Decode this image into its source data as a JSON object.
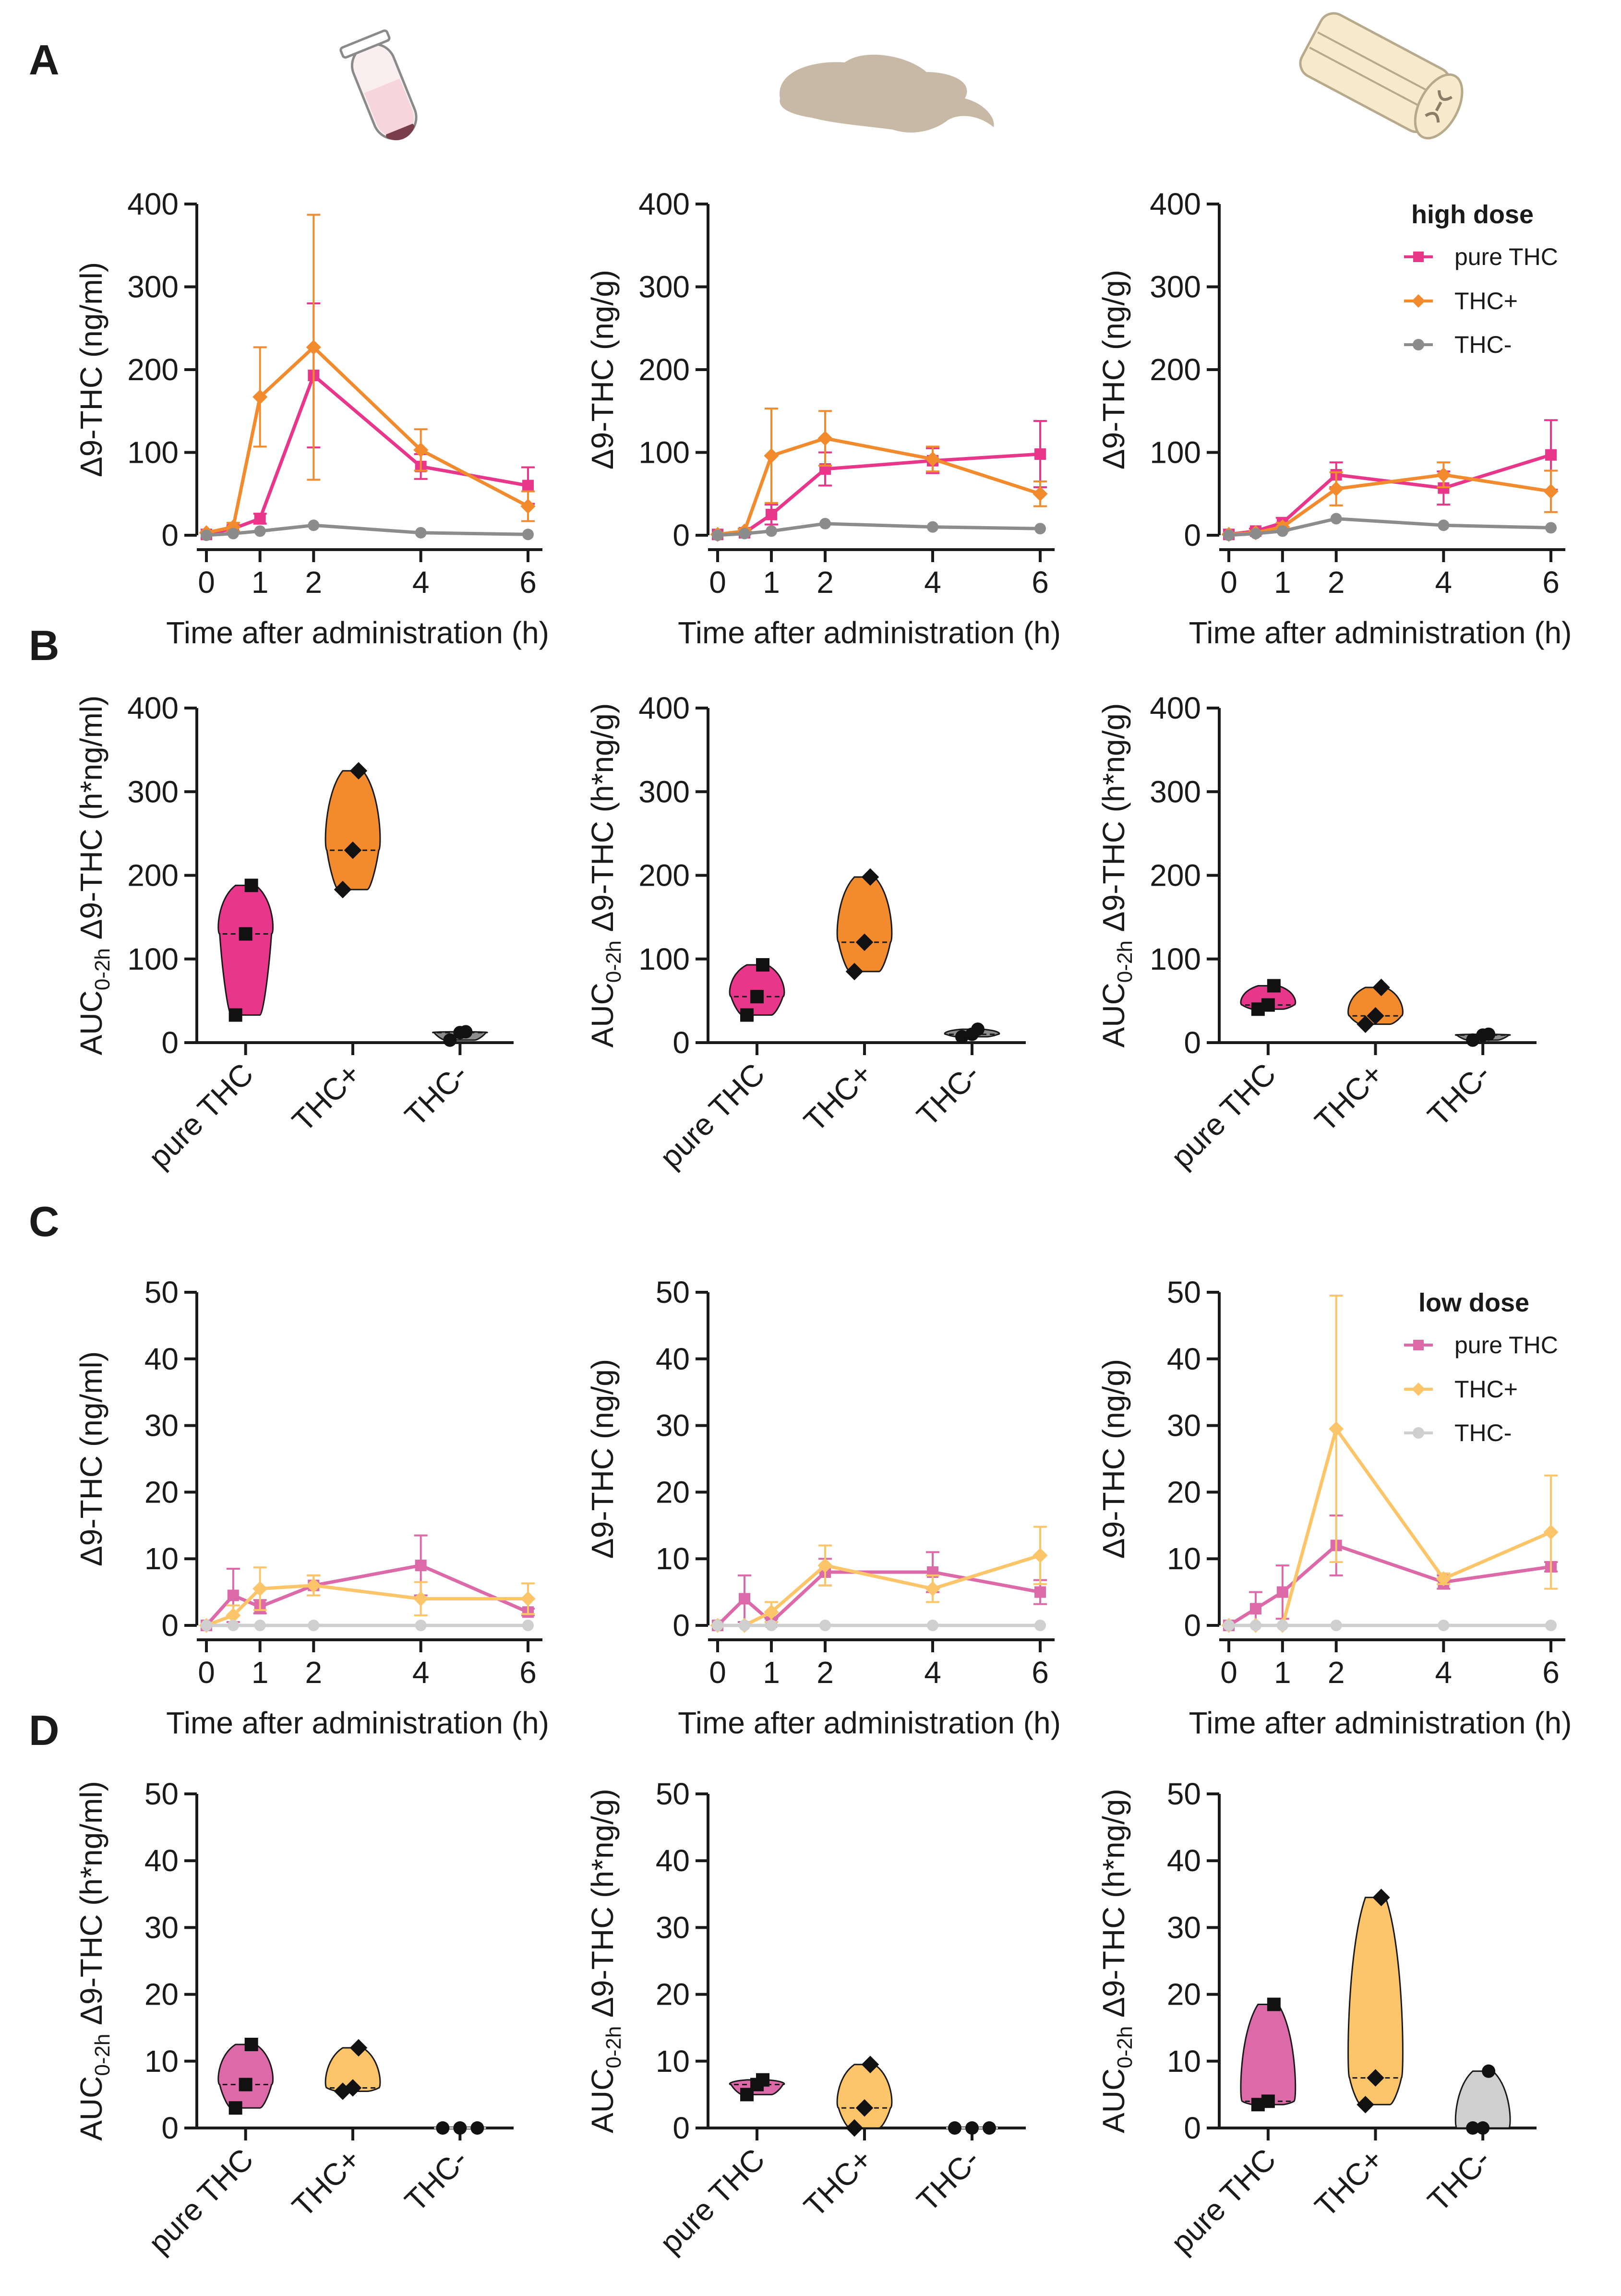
{
  "colors": {
    "pure_thc_high": "#e8378a",
    "thc_plus_high": "#f28a2e",
    "thc_minus_high": "#8c8c8c",
    "pure_thc_low": "#dc6aa8",
    "thc_plus_low": "#fcc56a",
    "thc_minus_low": "#cfcfcf",
    "tube_body": "#f6d6dc",
    "tube_tip": "#7a3d4a",
    "brain": "#c8b9a6",
    "spinal_cord": "#f6e9cc"
  },
  "icons": [
    "plasma-tube-icon",
    "brain-icon",
    "spinal-cord-icon"
  ],
  "panel_labels": {
    "A": "A",
    "B": "B",
    "C": "C",
    "D": "D"
  },
  "legends": {
    "high": {
      "title": "high dose",
      "items": [
        "pure THC",
        "THC+",
        "THC-"
      ]
    },
    "low": {
      "title": "low dose",
      "items": [
        "pure THC",
        "THC+",
        "THC-"
      ]
    }
  },
  "chart_data": [
    {
      "id": "A1",
      "type": "line",
      "panel": "A",
      "tissue": "plasma",
      "xlabel": "Time after administration (h)",
      "ylabel": "Δ9-THC (ng/ml)",
      "x_ticks": [
        "0",
        "1",
        "2",
        "4",
        "6"
      ],
      "y_ticks": [
        "0",
        "100",
        "200",
        "300",
        "400"
      ],
      "xlim": [
        0,
        6
      ],
      "ylim": [
        0,
        400
      ],
      "series": [
        {
          "name": "pure THC",
          "x": [
            0,
            0.5,
            1,
            2,
            4,
            6
          ],
          "y": [
            1,
            8,
            20,
            193,
            83,
            60
          ],
          "err": [
            0,
            4,
            6,
            87,
            15,
            22
          ]
        },
        {
          "name": "THC+",
          "x": [
            0,
            0.5,
            1,
            2,
            4,
            6
          ],
          "y": [
            3,
            10,
            167,
            227,
            103,
            35
          ],
          "err": [
            0,
            5,
            60,
            160,
            25,
            18
          ]
        },
        {
          "name": "THC-",
          "x": [
            0,
            0.5,
            1,
            2,
            4,
            6
          ],
          "y": [
            0,
            2,
            5,
            12,
            3,
            1
          ],
          "err": [
            0,
            0,
            0,
            0,
            0,
            0
          ]
        }
      ]
    },
    {
      "id": "A2",
      "type": "line",
      "panel": "A",
      "tissue": "brain",
      "xlabel": "Time after administration (h)",
      "ylabel": "Δ9-THC (ng/g)",
      "x_ticks": [
        "0",
        "1",
        "2",
        "4",
        "6"
      ],
      "y_ticks": [
        "0",
        "100",
        "200",
        "300",
        "400"
      ],
      "xlim": [
        0,
        6
      ],
      "ylim": [
        0,
        400
      ],
      "series": [
        {
          "name": "pure THC",
          "x": [
            0,
            0.5,
            1,
            2,
            4,
            6
          ],
          "y": [
            1,
            3,
            25,
            80,
            90,
            98
          ],
          "err": [
            0,
            2,
            12,
            20,
            15,
            40
          ]
        },
        {
          "name": "THC+",
          "x": [
            0,
            0.5,
            1,
            2,
            4,
            6
          ],
          "y": [
            1,
            5,
            96,
            117,
            92,
            50
          ],
          "err": [
            0,
            3,
            57,
            33,
            15,
            15
          ]
        },
        {
          "name": "THC-",
          "x": [
            0,
            0.5,
            1,
            2,
            4,
            6
          ],
          "y": [
            0,
            2,
            5,
            14,
            10,
            8
          ],
          "err": [
            0,
            0,
            0,
            0,
            0,
            0
          ]
        }
      ]
    },
    {
      "id": "A3",
      "type": "line",
      "panel": "A",
      "tissue": "spinal cord",
      "xlabel": "Time after administration (h)",
      "ylabel": "Δ9-THC (ng/g)",
      "x_ticks": [
        "0",
        "1",
        "2",
        "4",
        "6"
      ],
      "y_ticks": [
        "0",
        "100",
        "200",
        "300",
        "400"
      ],
      "xlim": [
        0,
        6
      ],
      "ylim": [
        0,
        400
      ],
      "series": [
        {
          "name": "pure THC",
          "x": [
            0,
            0.5,
            1,
            2,
            4,
            6
          ],
          "y": [
            1,
            5,
            15,
            73,
            57,
            97
          ],
          "err": [
            0,
            3,
            6,
            15,
            20,
            42
          ]
        },
        {
          "name": "THC+",
          "x": [
            0,
            0.5,
            1,
            2,
            4,
            6
          ],
          "y": [
            1,
            3,
            10,
            56,
            73,
            53
          ],
          "err": [
            0,
            2,
            5,
            20,
            15,
            25
          ]
        },
        {
          "name": "THC-",
          "x": [
            0,
            0.5,
            1,
            2,
            4,
            6
          ],
          "y": [
            0,
            2,
            5,
            20,
            12,
            9
          ],
          "err": [
            0,
            0,
            0,
            0,
            0,
            0
          ]
        }
      ]
    },
    {
      "id": "B1",
      "type": "violin",
      "panel": "B",
      "tissue": "plasma",
      "ylabel_main": "AUC",
      "ylabel_sub": "0-2h",
      "ylabel_rest": " Δ9-THC (h*ng/ml)",
      "y_ticks": [
        "0",
        "100",
        "200",
        "300",
        "400"
      ],
      "ylim": [
        0,
        400
      ],
      "categories": [
        "pure THC",
        "THC+",
        "THC-"
      ],
      "groups": [
        {
          "name": "pure THC",
          "points": [
            33,
            130,
            188
          ],
          "median": 130
        },
        {
          "name": "THC+",
          "points": [
            183,
            230,
            325
          ],
          "median": 230
        },
        {
          "name": "THC-",
          "points": [
            3,
            12,
            13
          ],
          "median": 12
        }
      ]
    },
    {
      "id": "B2",
      "type": "violin",
      "panel": "B",
      "tissue": "brain",
      "ylabel_main": "AUC",
      "ylabel_sub": "0-2h",
      "ylabel_rest": " Δ9-THC (h*ng/g)",
      "y_ticks": [
        "0",
        "100",
        "200",
        "300",
        "400"
      ],
      "ylim": [
        0,
        400
      ],
      "categories": [
        "pure THC",
        "THC+",
        "THC-"
      ],
      "groups": [
        {
          "name": "pure THC",
          "points": [
            33,
            55,
            93
          ],
          "median": 55
        },
        {
          "name": "THC+",
          "points": [
            85,
            120,
            198
          ],
          "median": 120
        },
        {
          "name": "THC-",
          "points": [
            7,
            10,
            16
          ],
          "median": 10
        }
      ]
    },
    {
      "id": "B3",
      "type": "violin",
      "panel": "B",
      "tissue": "spinal cord",
      "ylabel_main": "AUC",
      "ylabel_sub": "0-2h",
      "ylabel_rest": " Δ9-THC (h*ng/g)",
      "y_ticks": [
        "0",
        "100",
        "200",
        "300",
        "400"
      ],
      "ylim": [
        0,
        400
      ],
      "categories": [
        "pure THC",
        "THC+",
        "THC-"
      ],
      "groups": [
        {
          "name": "pure THC",
          "points": [
            40,
            45,
            68
          ],
          "median": 45
        },
        {
          "name": "THC+",
          "points": [
            22,
            32,
            66
          ],
          "median": 32
        },
        {
          "name": "THC-",
          "points": [
            3,
            9,
            10
          ],
          "median": 9
        }
      ]
    },
    {
      "id": "C1",
      "type": "line",
      "panel": "C",
      "tissue": "plasma",
      "xlabel": "Time after administration (h)",
      "ylabel": "Δ9-THC (ng/ml)",
      "x_ticks": [
        "0",
        "1",
        "2",
        "4",
        "6"
      ],
      "y_ticks": [
        "0",
        "10",
        "20",
        "30",
        "40",
        "50"
      ],
      "xlim": [
        0,
        6
      ],
      "ylim": [
        0,
        50
      ],
      "series": [
        {
          "name": "pure THC",
          "x": [
            0,
            0.5,
            1,
            2,
            4,
            6
          ],
          "y": [
            0,
            4.5,
            2.8,
            6,
            9,
            2
          ],
          "err": [
            0,
            4,
            1,
            1.5,
            4.5,
            0.5
          ]
        },
        {
          "name": "THC+",
          "x": [
            0,
            0.5,
            1,
            2,
            4,
            6
          ],
          "y": [
            0,
            1.5,
            5.5,
            6,
            4,
            4
          ],
          "err": [
            0,
            1.5,
            3.2,
            1.5,
            2.5,
            2.3
          ]
        },
        {
          "name": "THC-",
          "x": [
            0,
            0.5,
            1,
            2,
            4,
            6
          ],
          "y": [
            0,
            0,
            0,
            0,
            0,
            0
          ],
          "err": [
            0,
            0,
            0,
            0,
            0,
            0
          ]
        }
      ]
    },
    {
      "id": "C2",
      "type": "line",
      "panel": "C",
      "tissue": "brain",
      "xlabel": "Time after administration (h)",
      "ylabel": "Δ9-THC (ng/g)",
      "x_ticks": [
        "0",
        "1",
        "2",
        "4",
        "6"
      ],
      "y_ticks": [
        "0",
        "10",
        "20",
        "30",
        "40",
        "50"
      ],
      "xlim": [
        0,
        6
      ],
      "ylim": [
        0,
        50
      ],
      "series": [
        {
          "name": "pure THC",
          "x": [
            0,
            0.5,
            1,
            2,
            4,
            6
          ],
          "y": [
            0,
            4,
            0.5,
            8,
            8,
            5
          ],
          "err": [
            0,
            3.5,
            0.5,
            2,
            3,
            1.8
          ]
        },
        {
          "name": "THC+",
          "x": [
            0,
            0.5,
            1,
            2,
            4,
            6
          ],
          "y": [
            0,
            0,
            2,
            9,
            5.5,
            10.5
          ],
          "err": [
            0,
            0,
            1.5,
            3,
            2,
            4.3
          ]
        },
        {
          "name": "THC-",
          "x": [
            0,
            0.5,
            1,
            2,
            4,
            6
          ],
          "y": [
            0,
            0,
            0,
            0,
            0,
            0
          ],
          "err": [
            0,
            0,
            0,
            0,
            0,
            0
          ]
        }
      ]
    },
    {
      "id": "C3",
      "type": "line",
      "panel": "C",
      "tissue": "spinal cord",
      "xlabel": "Time after administration (h)",
      "ylabel": "Δ9-THC (ng/g)",
      "x_ticks": [
        "0",
        "1",
        "2",
        "4",
        "6"
      ],
      "y_ticks": [
        "0",
        "10",
        "20",
        "30",
        "40",
        "50"
      ],
      "xlim": [
        0,
        6
      ],
      "ylim": [
        0,
        50
      ],
      "series": [
        {
          "name": "pure THC",
          "x": [
            0,
            0.5,
            1,
            2,
            4,
            6
          ],
          "y": [
            0,
            2.5,
            5,
            12,
            6.5,
            8.8
          ],
          "err": [
            0,
            2.5,
            4,
            4.5,
            1,
            0.7
          ]
        },
        {
          "name": "THC+",
          "x": [
            0,
            0.5,
            1,
            2,
            4,
            6
          ],
          "y": [
            0,
            0,
            0,
            29.5,
            7,
            14
          ],
          "err": [
            0,
            0,
            0,
            20,
            0.8,
            8.5
          ]
        },
        {
          "name": "THC-",
          "x": [
            0,
            0.5,
            1,
            2,
            4,
            6
          ],
          "y": [
            0,
            0,
            0,
            0,
            0,
            0
          ],
          "err": [
            0,
            0,
            0,
            0,
            0,
            0
          ]
        }
      ]
    },
    {
      "id": "D1",
      "type": "violin",
      "panel": "D",
      "tissue": "plasma",
      "ylabel_main": "AUC",
      "ylabel_sub": "0-2h",
      "ylabel_rest": " Δ9-THC (h*ng/ml)",
      "y_ticks": [
        "0",
        "10",
        "20",
        "30",
        "40",
        "50"
      ],
      "ylim": [
        0,
        50
      ],
      "categories": [
        "pure THC",
        "THC+",
        "THC-"
      ],
      "groups": [
        {
          "name": "pure THC",
          "points": [
            3,
            6.5,
            12.5
          ],
          "median": 6.5
        },
        {
          "name": "THC+",
          "points": [
            5.5,
            6,
            12
          ],
          "median": 6
        },
        {
          "name": "THC-",
          "points": [
            0,
            0,
            0
          ],
          "median": 0
        }
      ]
    },
    {
      "id": "D2",
      "type": "violin",
      "panel": "D",
      "tissue": "brain",
      "ylabel_main": "AUC",
      "ylabel_sub": "0-2h",
      "ylabel_rest": " Δ9-THC (h*ng/g)",
      "y_ticks": [
        "0",
        "10",
        "20",
        "30",
        "40",
        "50"
      ],
      "ylim": [
        0,
        50
      ],
      "categories": [
        "pure THC",
        "THC+",
        "THC-"
      ],
      "groups": [
        {
          "name": "pure THC",
          "points": [
            5,
            6.5,
            7.2
          ],
          "median": 6.5
        },
        {
          "name": "THC+",
          "points": [
            0,
            3,
            9.5
          ],
          "median": 3
        },
        {
          "name": "THC-",
          "points": [
            0,
            0,
            0
          ],
          "median": 0
        }
      ]
    },
    {
      "id": "D3",
      "type": "violin",
      "panel": "D",
      "tissue": "spinal cord",
      "ylabel_main": "AUC",
      "ylabel_sub": "0-2h",
      "ylabel_rest": " Δ9-THC (h*ng/g)",
      "y_ticks": [
        "0",
        "10",
        "20",
        "30",
        "40",
        "50"
      ],
      "ylim": [
        0,
        50
      ],
      "categories": [
        "pure THC",
        "THC+",
        "THC-"
      ],
      "groups": [
        {
          "name": "pure THC",
          "points": [
            3.5,
            4,
            18.5
          ],
          "median": 4
        },
        {
          "name": "THC+",
          "points": [
            3.5,
            7.5,
            34.5
          ],
          "median": 7.5
        },
        {
          "name": "THC-",
          "points": [
            0,
            0,
            8.5
          ],
          "median": 0
        }
      ]
    }
  ]
}
